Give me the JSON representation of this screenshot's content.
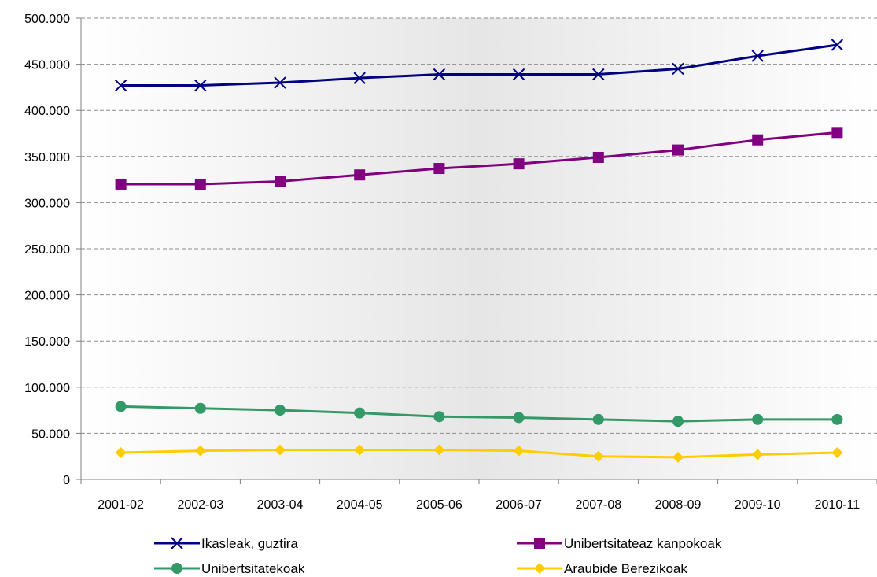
{
  "chart_data": {
    "type": "line",
    "title": "",
    "xlabel": "",
    "ylabel": "",
    "categories": [
      "2001-02",
      "2002-03",
      "2003-04",
      "2004-05",
      "2005-06",
      "2006-07",
      "2007-08",
      "2008-09",
      "2009-10",
      "2010-11"
    ],
    "ylim": [
      0,
      500000
    ],
    "y_ticks": [
      {
        "value": 0,
        "label": "0"
      },
      {
        "value": 50000,
        "label": "50.000"
      },
      {
        "value": 100000,
        "label": "100.000"
      },
      {
        "value": 150000,
        "label": "150.000"
      },
      {
        "value": 200000,
        "label": "200.000"
      },
      {
        "value": 250000,
        "label": "250.000"
      },
      {
        "value": 300000,
        "label": "300.000"
      },
      {
        "value": 350000,
        "label": "350.000"
      },
      {
        "value": 400000,
        "label": "400.000"
      },
      {
        "value": 450000,
        "label": "450.000"
      },
      {
        "value": 500000,
        "label": "500.000"
      }
    ],
    "grid": "horizontal dashed",
    "legend_position": "bottom",
    "series": [
      {
        "name": "Ikasleak, guztira",
        "color": "#000080",
        "marker": "x",
        "values": [
          427000,
          427000,
          430000,
          435000,
          439000,
          439000,
          439000,
          445000,
          459000,
          471000
        ]
      },
      {
        "name": "Unibertsitateaz kanpokoak",
        "color": "#800080",
        "marker": "square",
        "values": [
          320000,
          320000,
          323000,
          330000,
          337000,
          342000,
          349000,
          357000,
          368000,
          376000
        ]
      },
      {
        "name": "Unibertsitatekoak",
        "color": "#339966",
        "marker": "circle",
        "values": [
          79000,
          77000,
          75000,
          72000,
          68000,
          67000,
          65000,
          63000,
          65000,
          65000
        ]
      },
      {
        "name": "Araubide Berezikoak",
        "color": "#FFCC00",
        "marker": "diamond",
        "values": [
          29000,
          31000,
          32000,
          32000,
          32000,
          31000,
          25000,
          24000,
          27000,
          29000
        ]
      }
    ]
  }
}
